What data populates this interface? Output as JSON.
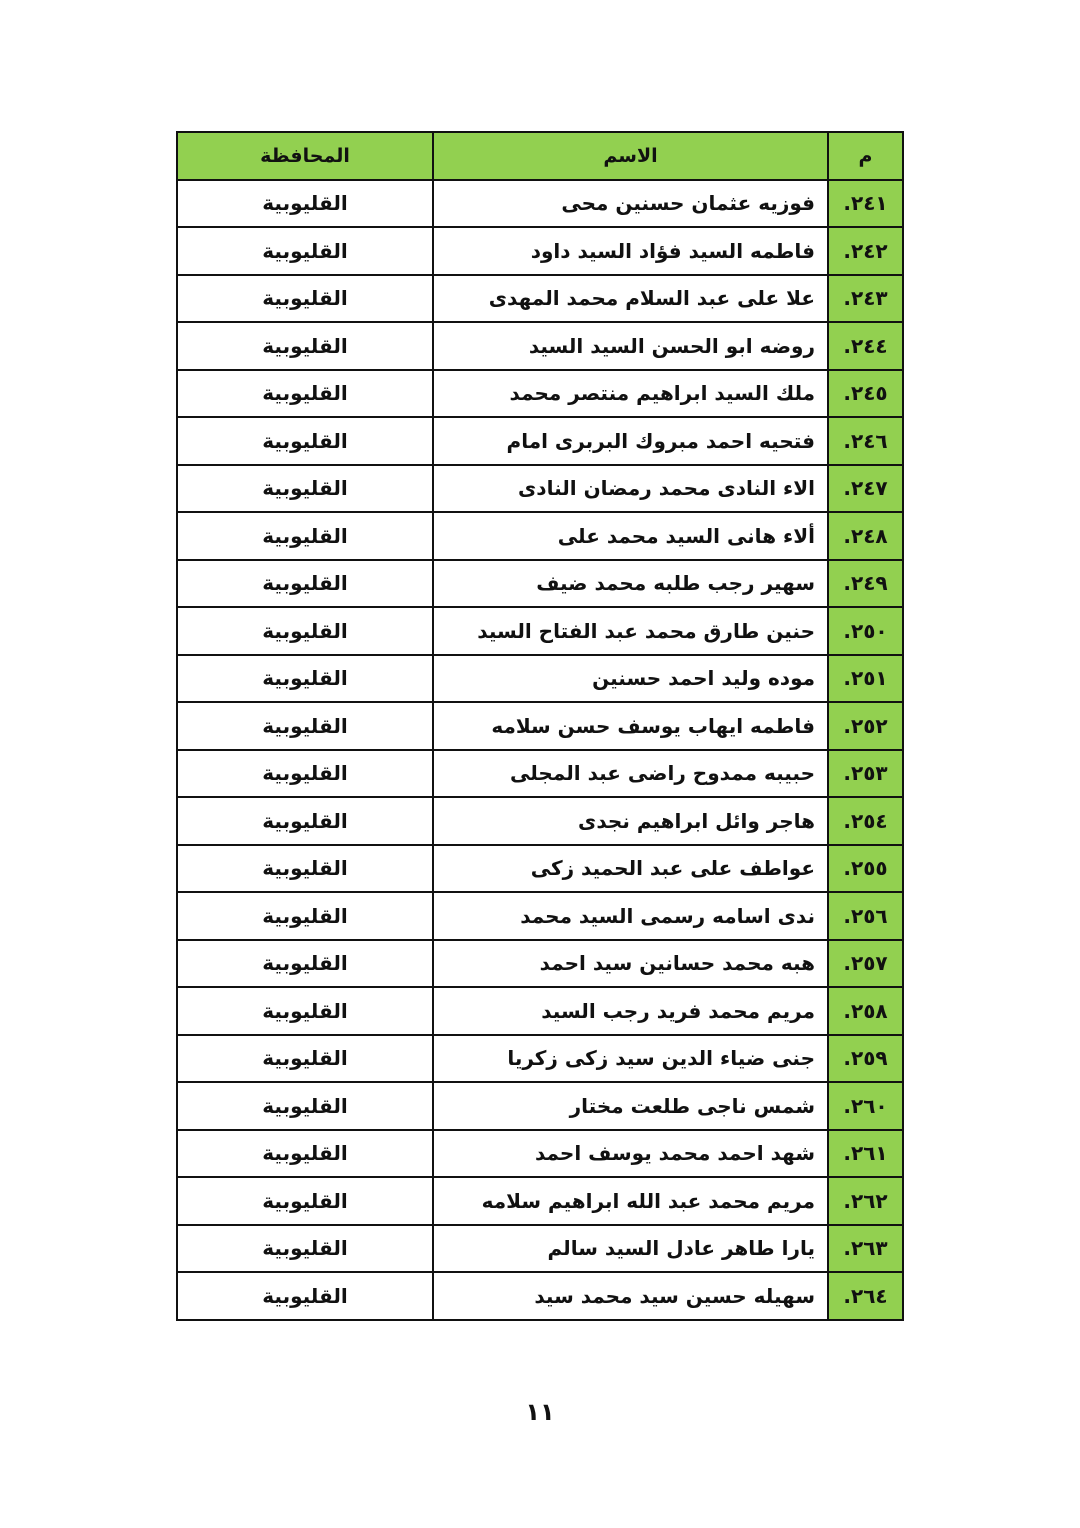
{
  "table": {
    "headers": {
      "num": "م",
      "name": "الاسم",
      "governorate": "المحافظة"
    },
    "rows": [
      {
        "num": "٢٤١.",
        "name": "فوزيه عثمان حسنين محى",
        "governorate": "القليوبية"
      },
      {
        "num": "٢٤٢.",
        "name": "فاطمه السيد فؤاد السيد داود",
        "governorate": "القليوبية"
      },
      {
        "num": "٢٤٣.",
        "name": "علا على عبد السلام محمد المهدى",
        "governorate": "القليوبية"
      },
      {
        "num": "٢٤٤.",
        "name": "روضه ابو الحسن السيد السيد",
        "governorate": "القليوبية"
      },
      {
        "num": "٢٤٥.",
        "name": "ملك السيد ابراهيم منتصر محمد",
        "governorate": "القليوبية"
      },
      {
        "num": "٢٤٦.",
        "name": "فتحيه احمد مبروك البربرى امام",
        "governorate": "القليوبية"
      },
      {
        "num": "٢٤٧.",
        "name": "الاء النادى محمد رمضان النادى",
        "governorate": "القليوبية"
      },
      {
        "num": "٢٤٨.",
        "name": "ألاء هانى السيد محمد على",
        "governorate": "القليوبية"
      },
      {
        "num": "٢٤٩.",
        "name": "سهير رجب طلبه محمد ضيف",
        "governorate": "القليوبية"
      },
      {
        "num": "٢٥٠.",
        "name": "حنين طارق محمد عبد الفتاح السيد",
        "governorate": "القليوبية"
      },
      {
        "num": "٢٥١.",
        "name": "موده وليد احمد حسنين",
        "governorate": "القليوبية"
      },
      {
        "num": "٢٥٢.",
        "name": "فاطمه ايهاب يوسف حسن سلامه",
        "governorate": "القليوبية"
      },
      {
        "num": "٢٥٣.",
        "name": "حبيبه ممدوح راضى عبد المجلى",
        "governorate": "القليوبية"
      },
      {
        "num": "٢٥٤.",
        "name": "هاجر وائل ابراهيم نجدى",
        "governorate": "القليوبية"
      },
      {
        "num": "٢٥٥.",
        "name": "عواطف على عبد الحميد زكى",
        "governorate": "القليوبية"
      },
      {
        "num": "٢٥٦.",
        "name": "ندى اسامه رسمى السيد محمد",
        "governorate": "القليوبية"
      },
      {
        "num": "٢٥٧.",
        "name": "هبه محمد حسانين سيد احمد",
        "governorate": "القليوبية"
      },
      {
        "num": "٢٥٨.",
        "name": "مريم محمد فريد رجب السيد",
        "governorate": "القليوبية"
      },
      {
        "num": "٢٥٩.",
        "name": "جنى ضياء الدين سيد زكى زكريا",
        "governorate": "القليوبية"
      },
      {
        "num": "٢٦٠.",
        "name": "شمس ناجى طلعت مختار",
        "governorate": "القليوبية"
      },
      {
        "num": "٢٦١.",
        "name": "شهد احمد محمد يوسف احمد",
        "governorate": "القليوبية"
      },
      {
        "num": "٢٦٢.",
        "name": "مريم محمد عبد الله ابراهيم سلامه",
        "governorate": "القليوبية"
      },
      {
        "num": "٢٦٣.",
        "name": "يارا طاهر عادل السيد سالم",
        "governorate": "القليوبية"
      },
      {
        "num": "٢٦٤.",
        "name": "سهيله حسين سيد محمد سيد",
        "governorate": "القليوبية"
      }
    ]
  },
  "page_number": "١١",
  "colors": {
    "header_fill": "#92d050",
    "border": "#111111"
  }
}
